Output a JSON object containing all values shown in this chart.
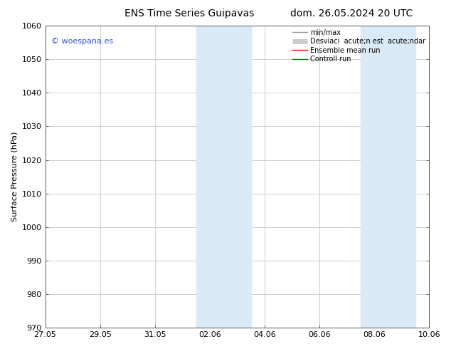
{
  "title_left": "ENS Time Series Guipavas",
  "title_right": "dom. 26.05.2024 20 UTC",
  "ylabel": "Surface Pressure (hPa)",
  "ylim": [
    970,
    1060
  ],
  "yticks": [
    970,
    980,
    990,
    1000,
    1010,
    1020,
    1030,
    1040,
    1050,
    1060
  ],
  "xlim": [
    0,
    14
  ],
  "xtick_positions": [
    0,
    2,
    4,
    6,
    8,
    10,
    12,
    14
  ],
  "xtick_labels": [
    "27.05",
    "29.05",
    "31.05",
    "02.06",
    "04.06",
    "06.06",
    "08.06",
    "10.06"
  ],
  "shaded_regions": [
    {
      "start": 5.5,
      "end": 7.5
    },
    {
      "start": 11.5,
      "end": 13.5
    }
  ],
  "shaded_color": "#daeaf6",
  "watermark_text": "© woespana.es",
  "watermark_color": "#3355cc",
  "legend_labels": [
    "min/max",
    "Desviaci  acute;n est  acute;ndar",
    "Ensemble mean run",
    "Controll run"
  ],
  "legend_colors": [
    "#999999",
    "#cccccc",
    "#ff0000",
    "#008000"
  ],
  "legend_lw": [
    1.0,
    5.0,
    1.0,
    1.0
  ],
  "bg_color": "#ffffff",
  "grid_color": "#bbbbbb",
  "spine_color": "#555555",
  "title_fontsize": 10,
  "ylabel_fontsize": 8,
  "tick_fontsize": 8,
  "legend_fontsize": 7,
  "watermark_fontsize": 8
}
